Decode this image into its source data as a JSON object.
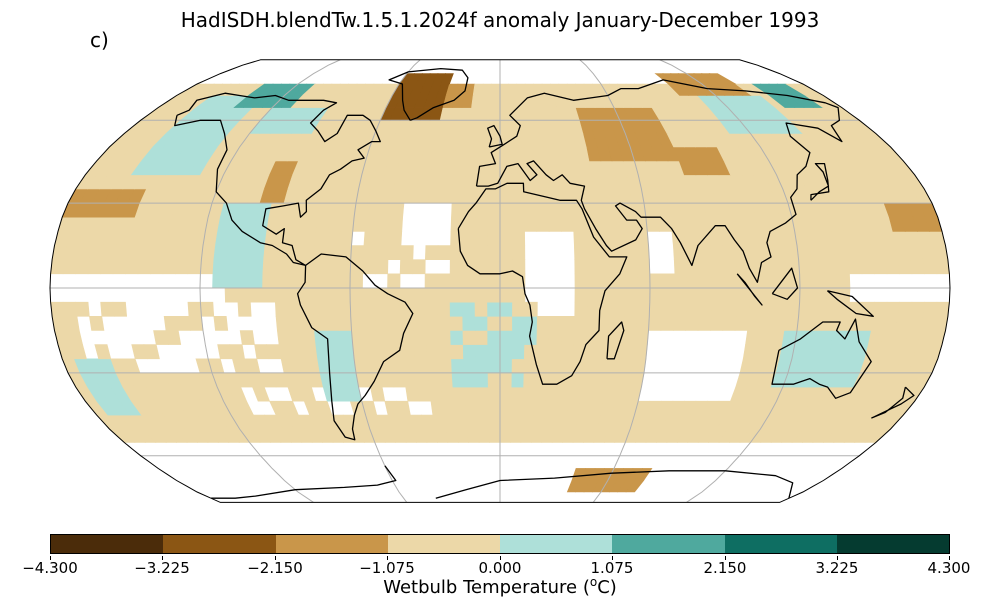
{
  "title": "HadISDH.blendTw.1.5.1.2024f anomaly January-December 1993",
  "panel_label": "c)",
  "colorbar": {
    "label_main": "Wetbulb Temperature (",
    "label_sup": "o",
    "label_unit": "C)",
    "ticks": [
      "−4.300",
      "−3.225",
      "−2.150",
      "−1.075",
      "0.000",
      "1.075",
      "2.150",
      "3.225",
      "4.300"
    ],
    "colors": [
      "#543005",
      "#8c510a",
      "#bf812d",
      "#dfc27d",
      "#f6e8c3",
      "#c7eae5",
      "#80cdc1",
      "#35978f",
      "#01665e",
      "#003c30"
    ],
    "bins": [
      {
        "range": "-4.300 to -3.225",
        "color": "#4b2c0a"
      },
      {
        "range": "-3.225 to -2.150",
        "color": "#8b5614"
      },
      {
        "range": "-2.150 to -1.075",
        "color": "#c9964a"
      },
      {
        "range": "-1.075 to 0.000",
        "color": "#ecd8a8"
      },
      {
        "range": "0.000 to 1.075",
        "color": "#aee0d9"
      },
      {
        "range": "1.075 to 2.150",
        "color": "#4fa99e"
      },
      {
        "range": "2.150 to 3.225",
        "color": "#0e6e62"
      },
      {
        "range": "3.225 to 4.300",
        "color": "#053b30"
      }
    ]
  },
  "map": {
    "projection": "Robinson",
    "gridlines": "on",
    "coastlines": "black",
    "anomaly_pattern": "mostly weak negative (tan) over land and oceans; positive (teal) over western North America, southern South America, South Atlantic, Australia; strong negative (brown) over Greenland and central Asia; white = missing data"
  }
}
